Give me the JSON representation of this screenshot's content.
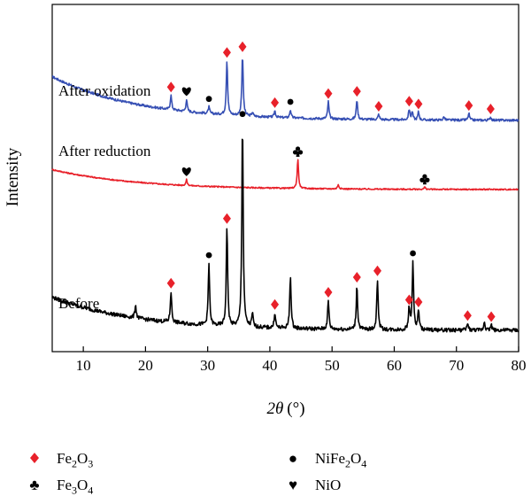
{
  "chart_data": {
    "type": "line",
    "xlabel": "2θ (°)",
    "xlabel_parts": {
      "symbol": "2θ",
      "unit": "(°)"
    },
    "ylabel": "Intensity",
    "xlim": [
      5,
      80
    ],
    "xticks": [
      10,
      20,
      30,
      40,
      50,
      60,
      70,
      80
    ],
    "grid": false,
    "legend_position": "bottom",
    "colors": {
      "Fe2O3": "#e8212a",
      "NiFe2O4": "#000000",
      "Fe3O4": "#000000",
      "NiO": "#000000"
    },
    "series": [
      {
        "name": "After oxidation",
        "color": "#3750b4",
        "label_x": 6,
        "baseline_start": 0.82,
        "baseline_end": 0.16,
        "peaks": [
          {
            "x": 24.1,
            "h": 0.22,
            "marker": "Fe2O3"
          },
          {
            "x": 26.6,
            "h": 0.18,
            "marker": "NiO"
          },
          {
            "x": 30.2,
            "h": 0.1,
            "marker": "NiFe2O4"
          },
          {
            "x": 33.1,
            "h": 0.82,
            "marker": "Fe2O3"
          },
          {
            "x": 35.6,
            "h": 0.92,
            "marker": "Fe2O3"
          },
          {
            "x": 37.2,
            "h": 0.06,
            "marker": null
          },
          {
            "x": 40.8,
            "h": 0.1,
            "marker": "Fe2O3"
          },
          {
            "x": 43.3,
            "h": 0.12,
            "marker": "NiFe2O4"
          },
          {
            "x": 49.4,
            "h": 0.26,
            "marker": "Fe2O3"
          },
          {
            "x": 54.0,
            "h": 0.3,
            "marker": "Fe2O3"
          },
          {
            "x": 57.5,
            "h": 0.08,
            "marker": "Fe2O3"
          },
          {
            "x": 62.4,
            "h": 0.16,
            "marker": "Fe2O3"
          },
          {
            "x": 62.9,
            "h": 0.12,
            "marker": null
          },
          {
            "x": 63.9,
            "h": 0.12,
            "marker": "Fe2O3"
          },
          {
            "x": 68.0,
            "h": 0.05,
            "marker": null
          },
          {
            "x": 72.0,
            "h": 0.1,
            "marker": "Fe2O3"
          },
          {
            "x": 75.5,
            "h": 0.05,
            "marker": "Fe2O3"
          }
        ]
      },
      {
        "name": "After reduction",
        "color": "#e8212a",
        "label_x": 6,
        "baseline_start": 0.55,
        "baseline_end": 0.0,
        "peaks": [
          {
            "x": 26.6,
            "h": 0.16,
            "marker": "NiO"
          },
          {
            "x": 44.5,
            "h": 0.8,
            "marker": "Fe3O4"
          },
          {
            "x": 51.0,
            "h": 0.12,
            "marker": null
          },
          {
            "x": 64.9,
            "h": 0.06,
            "marker": "Fe3O4"
          }
        ]
      },
      {
        "name": "Before",
        "color": "#000000",
        "label_x": 6,
        "baseline_start": 0.3,
        "baseline_end": 0.0,
        "peaks": [
          {
            "x": 18.4,
            "h": 0.12,
            "marker": null
          },
          {
            "x": 24.1,
            "h": 0.28,
            "marker": "Fe2O3"
          },
          {
            "x": 30.2,
            "h": 0.56,
            "marker": "NiFe2O4"
          },
          {
            "x": 33.1,
            "h": 0.9,
            "marker": "Fe2O3"
          },
          {
            "x": 35.6,
            "h": 1.85,
            "marker": "NiFe2O4"
          },
          {
            "x": 37.2,
            "h": 0.12,
            "marker": null
          },
          {
            "x": 40.8,
            "h": 0.14,
            "marker": "Fe2O3"
          },
          {
            "x": 43.3,
            "h": 0.48,
            "marker": null
          },
          {
            "x": 49.4,
            "h": 0.26,
            "marker": "Fe2O3"
          },
          {
            "x": 54.0,
            "h": 0.4,
            "marker": "Fe2O3"
          },
          {
            "x": 57.3,
            "h": 0.46,
            "marker": "Fe2O3"
          },
          {
            "x": 62.4,
            "h": 0.2,
            "marker": "Fe2O3"
          },
          {
            "x": 63.0,
            "h": 0.62,
            "marker": "NiFe2O4"
          },
          {
            "x": 63.9,
            "h": 0.18,
            "marker": "Fe2O3"
          },
          {
            "x": 71.8,
            "h": 0.06,
            "marker": "Fe2O3"
          },
          {
            "x": 74.5,
            "h": 0.08,
            "marker": null
          },
          {
            "x": 75.6,
            "h": 0.05,
            "marker": "Fe2O3"
          }
        ]
      }
    ]
  },
  "legend": [
    {
      "key": "Fe2O3",
      "symbol": "diamond",
      "text": "Fe",
      "sub1": "2",
      "mid": "O",
      "sub2": "3",
      "tail": ""
    },
    {
      "key": "NiFe2O4",
      "symbol": "circle",
      "text": "NiFe",
      "sub1": "2",
      "mid": "O",
      "sub2": "4",
      "tail": ""
    },
    {
      "key": "Fe3O4",
      "symbol": "club",
      "text": "Fe",
      "sub1": "3",
      "mid": "O",
      "sub2": "4",
      "tail": ""
    },
    {
      "key": "NiO",
      "symbol": "heart",
      "text": "NiO",
      "sub1": "",
      "mid": "",
      "sub2": "",
      "tail": ""
    }
  ]
}
